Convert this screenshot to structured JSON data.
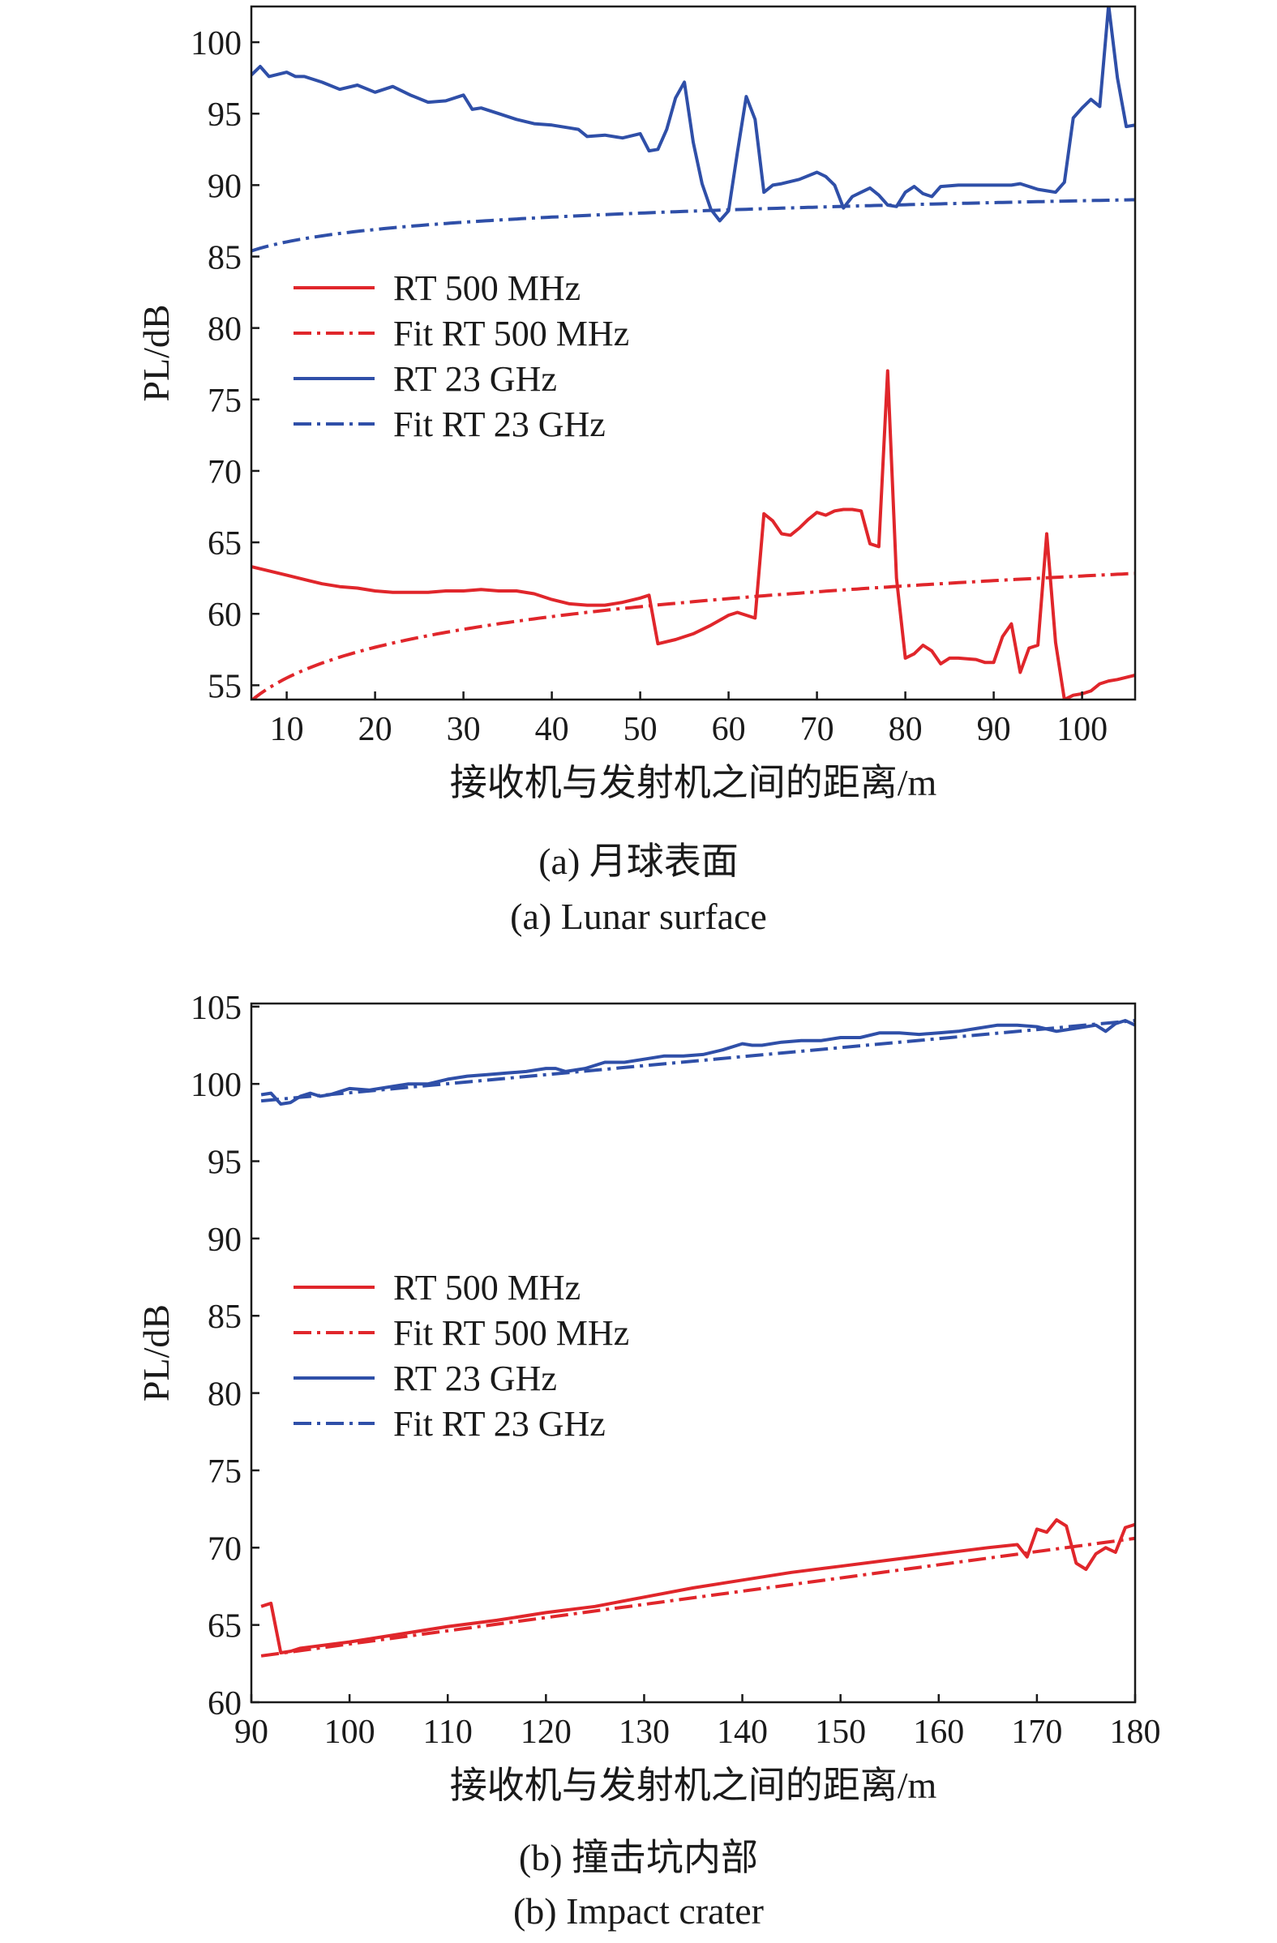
{
  "colors": {
    "red": "#e0262b",
    "blue": "#2f4fa8",
    "axis": "#1a1a1a"
  },
  "chart_data": [
    {
      "type": "line",
      "caption_zh": "(a) 月球表面",
      "caption_en": "(a) Lunar surface",
      "xlabel": "接收机与发射机之间的距离/m",
      "ylabel": "PL/dB",
      "xlim": [
        6,
        106
      ],
      "ylim": [
        54,
        102.5
      ],
      "xticks": [
        10,
        20,
        30,
        40,
        50,
        60,
        70,
        80,
        90,
        100
      ],
      "yticks": [
        55,
        60,
        65,
        70,
        75,
        80,
        85,
        90,
        95,
        100
      ],
      "grid": false,
      "legend_position": "center-left",
      "series": [
        {
          "name": "RT 500 MHz",
          "color": "red",
          "style": "solid",
          "x": [
            6,
            8,
            10,
            12,
            14,
            16,
            18,
            20,
            22,
            24,
            26,
            28,
            30,
            32,
            34,
            36,
            38,
            40,
            42,
            44,
            46,
            48,
            50,
            51,
            52,
            54,
            56,
            58,
            60,
            61,
            62,
            63,
            64,
            65,
            66,
            67,
            68,
            69,
            70,
            71,
            72,
            73,
            74,
            75,
            76,
            77,
            78,
            79,
            80,
            81,
            82,
            83,
            84,
            85,
            86,
            88,
            89,
            90,
            91,
            92,
            93,
            94,
            95,
            96,
            97,
            98,
            99,
            100,
            101,
            102,
            103,
            104,
            106
          ],
          "y": [
            63.3,
            63.0,
            62.7,
            62.4,
            62.1,
            61.9,
            61.8,
            61.6,
            61.5,
            61.5,
            61.5,
            61.6,
            61.6,
            61.7,
            61.6,
            61.6,
            61.4,
            61.0,
            60.7,
            60.6,
            60.6,
            60.8,
            61.1,
            61.3,
            57.9,
            58.2,
            58.6,
            59.2,
            59.9,
            60.1,
            59.9,
            59.7,
            67.0,
            66.5,
            65.6,
            65.5,
            66.0,
            66.6,
            67.1,
            66.9,
            67.2,
            67.3,
            67.3,
            67.2,
            64.9,
            64.7,
            77.0,
            62.5,
            56.9,
            57.2,
            57.8,
            57.4,
            56.5,
            56.9,
            56.9,
            56.8,
            56.6,
            56.6,
            58.4,
            59.3,
            55.9,
            57.6,
            57.8,
            65.6,
            58.0,
            54.0,
            54.3,
            54.4,
            54.6,
            55.1,
            55.3,
            55.4,
            55.7
          ]
        },
        {
          "name": "Fit RT 500 MHz",
          "color": "red",
          "style": "dashdot",
          "fit": {
            "a": 48.37,
            "b": 3.1
          }
        },
        {
          "name": "RT 23 GHz",
          "color": "blue",
          "style": "solid",
          "x": [
            6,
            7,
            8,
            10,
            11,
            12,
            14,
            16,
            18,
            20,
            22,
            24,
            26,
            28,
            30,
            31,
            32,
            34,
            36,
            38,
            40,
            42,
            43,
            44,
            46,
            48,
            50,
            51,
            52,
            53,
            54,
            55,
            56,
            57,
            58,
            59,
            60,
            61,
            62,
            63,
            64,
            65,
            66,
            68,
            70,
            71,
            72,
            73,
            74,
            75,
            76,
            77,
            78,
            79,
            80,
            81,
            82,
            83,
            84,
            86,
            88,
            90,
            92,
            93,
            94,
            95,
            96,
            97,
            98,
            99,
            100,
            101,
            102,
            103,
            104,
            105,
            106
          ],
          "y": [
            97.7,
            98.3,
            97.6,
            97.9,
            97.6,
            97.6,
            97.2,
            96.7,
            97.0,
            96.5,
            96.9,
            96.3,
            95.8,
            95.9,
            96.3,
            95.3,
            95.4,
            95.0,
            94.6,
            94.3,
            94.2,
            94.0,
            93.9,
            93.4,
            93.5,
            93.3,
            93.6,
            92.4,
            92.5,
            93.9,
            96.1,
            97.2,
            93.0,
            90.1,
            88.3,
            87.5,
            88.2,
            92.3,
            96.2,
            94.6,
            89.5,
            90.0,
            90.1,
            90.4,
            90.9,
            90.6,
            90.0,
            88.4,
            89.2,
            89.5,
            89.8,
            89.3,
            88.6,
            88.5,
            89.5,
            89.9,
            89.4,
            89.2,
            89.9,
            90.0,
            90.0,
            90.0,
            90.0,
            90.1,
            89.9,
            89.7,
            89.6,
            89.5,
            90.2,
            94.7,
            95.4,
            96.0,
            95.5,
            102.6,
            97.5,
            94.1,
            94.2
          ]
        },
        {
          "name": "Fit RT 23 GHz",
          "color": "blue",
          "style": "dashdot",
          "fit": {
            "a": 83.15,
            "b": 1.25
          }
        }
      ]
    },
    {
      "type": "line",
      "caption_zh": "(b) 撞击坑内部",
      "caption_en": "(b) Impact crater",
      "xlabel": "接收机与发射机之间的距离/m",
      "ylabel": "PL/dB",
      "xlim": [
        90,
        180
      ],
      "ylim": [
        60,
        105.2
      ],
      "xticks": [
        90,
        100,
        110,
        120,
        130,
        140,
        150,
        160,
        170,
        180
      ],
      "yticks": [
        60,
        65,
        70,
        75,
        80,
        85,
        90,
        95,
        100,
        105
      ],
      "grid": false,
      "legend_position": "center-left",
      "series": [
        {
          "name": "RT 500 MHz",
          "color": "red",
          "style": "solid",
          "x": [
            91,
            92,
            93,
            94,
            95,
            100,
            105,
            110,
            115,
            120,
            125,
            130,
            135,
            140,
            145,
            150,
            155,
            160,
            165,
            168,
            169,
            170,
            171,
            172,
            173,
            174,
            175,
            176,
            177,
            178,
            179,
            180
          ],
          "y": [
            66.2,
            66.4,
            63.2,
            63.3,
            63.5,
            63.9,
            64.4,
            64.9,
            65.3,
            65.8,
            66.2,
            66.8,
            67.4,
            67.9,
            68.4,
            68.8,
            69.2,
            69.6,
            70.0,
            70.2,
            69.4,
            71.2,
            71.0,
            71.8,
            71.4,
            69.0,
            68.6,
            69.6,
            70.0,
            69.7,
            71.3,
            71.5
          ]
        },
        {
          "name": "Fit RT 500 MHz",
          "color": "red",
          "style": "dashdot",
          "x": [
            91,
            180
          ],
          "y": [
            63.0,
            70.6
          ]
        },
        {
          "name": "RT 23 GHz",
          "color": "blue",
          "style": "solid",
          "x": [
            91,
            92,
            93,
            94,
            95,
            96,
            97,
            98,
            99,
            100,
            102,
            104,
            106,
            108,
            110,
            112,
            114,
            116,
            118,
            120,
            121,
            122,
            124,
            126,
            128,
            130,
            132,
            134,
            136,
            138,
            140,
            141,
            142,
            144,
            146,
            148,
            150,
            152,
            154,
            156,
            158,
            160,
            162,
            164,
            166,
            168,
            170,
            172,
            174,
            176,
            177,
            178,
            179,
            180
          ],
          "y": [
            99.3,
            99.4,
            98.7,
            98.8,
            99.2,
            99.4,
            99.2,
            99.3,
            99.5,
            99.7,
            99.6,
            99.8,
            100.0,
            100.0,
            100.3,
            100.5,
            100.6,
            100.7,
            100.8,
            101.0,
            101.0,
            100.8,
            101.0,
            101.4,
            101.4,
            101.6,
            101.8,
            101.8,
            101.9,
            102.2,
            102.6,
            102.5,
            102.5,
            102.7,
            102.8,
            102.8,
            103.0,
            103.0,
            103.3,
            103.3,
            103.2,
            103.3,
            103.4,
            103.6,
            103.8,
            103.8,
            103.7,
            103.4,
            103.6,
            103.8,
            103.4,
            103.9,
            104.1,
            103.8
          ]
        },
        {
          "name": "Fit RT 23 GHz",
          "color": "blue",
          "style": "dashdot",
          "x": [
            91,
            180
          ],
          "y": [
            98.9,
            104.1
          ]
        }
      ]
    }
  ]
}
